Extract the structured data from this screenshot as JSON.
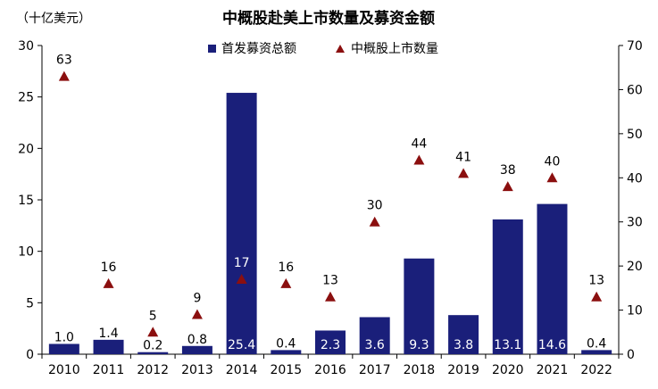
{
  "chart_data": {
    "type": "bar",
    "title": "中概股赴美上市数量及募资金额",
    "y_unit_label": "（十亿美元）",
    "categories": [
      "2010",
      "2011",
      "2012",
      "2013",
      "2014",
      "2015",
      "2016",
      "2017",
      "2018",
      "2019",
      "2020",
      "2021",
      "2022"
    ],
    "series": [
      {
        "name": "首发募资总额",
        "type": "bar",
        "axis": "left",
        "color": "#1a1f7a",
        "values": [
          1.0,
          1.4,
          0.2,
          0.8,
          25.4,
          0.4,
          2.3,
          3.6,
          9.3,
          3.8,
          13.1,
          14.6,
          0.4
        ],
        "labels": [
          "1.0",
          "1.4",
          "0.2",
          "0.8",
          "25.4",
          "0.4",
          "2.3",
          "3.6",
          "9.3",
          "3.8",
          "13.1",
          "14.6",
          "0.4"
        ]
      },
      {
        "name": "中概股上市数量",
        "type": "scatter",
        "marker": "triangle",
        "axis": "right",
        "color": "#8b0f0f",
        "values": [
          63,
          16,
          5,
          9,
          17,
          16,
          13,
          30,
          44,
          41,
          38,
          40,
          13
        ],
        "labels": [
          "63",
          "16",
          "5",
          "9",
          "17",
          "16",
          "13",
          "30",
          "44",
          "41",
          "38",
          "40",
          "13"
        ]
      }
    ],
    "y_left": {
      "min": 0,
      "max": 30,
      "ticks": [
        0,
        5,
        10,
        15,
        20,
        25,
        30
      ],
      "tick_labels": [
        "0",
        "5",
        "10",
        "15",
        "20",
        "25",
        "30"
      ]
    },
    "y_right": {
      "min": 0,
      "max": 70,
      "ticks": [
        0,
        10,
        20,
        30,
        40,
        50,
        60,
        70
      ],
      "tick_labels": [
        "0",
        "10",
        "20",
        "30",
        "40",
        "50",
        "60",
        "70"
      ]
    },
    "grid": false,
    "legend": "top-center"
  }
}
